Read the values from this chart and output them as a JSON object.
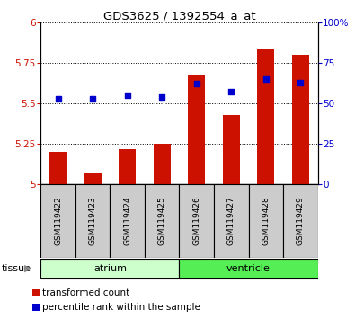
{
  "title": "GDS3625 / 1392554_a_at",
  "samples": [
    "GSM119422",
    "GSM119423",
    "GSM119424",
    "GSM119425",
    "GSM119426",
    "GSM119427",
    "GSM119428",
    "GSM119429"
  ],
  "transformed_count": [
    5.2,
    5.07,
    5.22,
    5.25,
    5.68,
    5.43,
    5.84,
    5.8
  ],
  "percentile_rank": [
    53,
    53,
    55,
    54,
    62,
    57,
    65,
    63
  ],
  "ylim_left": [
    5.0,
    6.0
  ],
  "ylim_right": [
    0,
    100
  ],
  "yticks_left": [
    5.0,
    5.25,
    5.5,
    5.75,
    6.0
  ],
  "yticks_right": [
    0,
    25,
    50,
    75,
    100
  ],
  "ytick_labels_left": [
    "5",
    "5.25",
    "5.5",
    "5.75",
    "6"
  ],
  "ytick_labels_right": [
    "0",
    "25",
    "50",
    "75",
    "100%"
  ],
  "bar_color": "#cc1100",
  "dot_color": "#0000cc",
  "tissue_groups": [
    {
      "label": "atrium",
      "start": 0,
      "end": 4,
      "color": "#ccffcc"
    },
    {
      "label": "ventricle",
      "start": 4,
      "end": 8,
      "color": "#55ee55"
    }
  ],
  "tissue_label": "tissue",
  "label_box_color": "#cccccc",
  "bar_width": 0.5,
  "dot_size": 22,
  "font_size_ticks": 7.5,
  "font_size_title": 9.5,
  "font_size_labels": 6.5,
  "font_size_legend": 7.5,
  "font_size_tissue": 8
}
